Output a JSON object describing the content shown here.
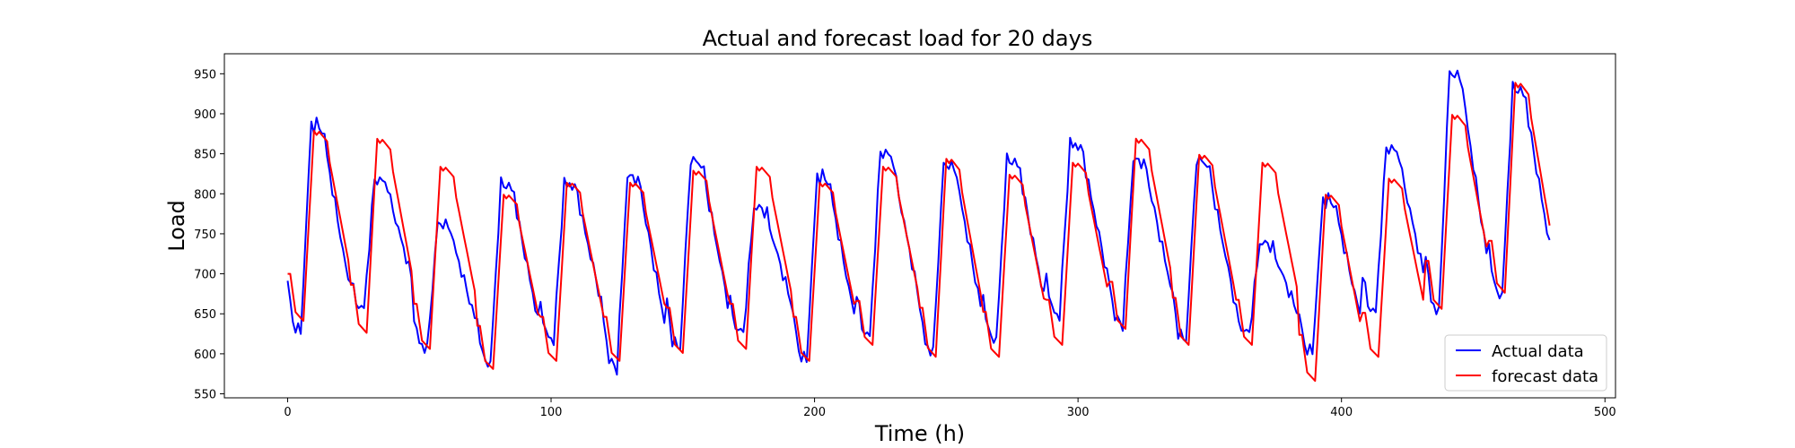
{
  "chart_data": {
    "type": "line",
    "title": "Actual and forecast load for 20 days",
    "xlabel": "Time (h)",
    "ylabel": "Load",
    "xlim": [
      -24,
      504
    ],
    "ylim": [
      545,
      975
    ],
    "xticks": [
      0,
      100,
      200,
      300,
      400,
      500
    ],
    "yticks": [
      550,
      600,
      650,
      700,
      750,
      800,
      850,
      900,
      950
    ],
    "grid": false,
    "legend_position": "bottom-right",
    "days": 20,
    "points_per_day": 24,
    "series": [
      {
        "name": "Actual data",
        "color": "#0000ff",
        "days": [
          {
            "min": 625,
            "max": 890
          },
          {
            "min": 655,
            "max": 820
          },
          {
            "min": 605,
            "max": 765
          },
          {
            "min": 585,
            "max": 815
          },
          {
            "min": 615,
            "max": 815
          },
          {
            "min": 580,
            "max": 825
          },
          {
            "min": 605,
            "max": 845
          },
          {
            "min": 625,
            "max": 785
          },
          {
            "min": 590,
            "max": 825
          },
          {
            "min": 620,
            "max": 855
          },
          {
            "min": 600,
            "max": 840
          },
          {
            "min": 615,
            "max": 845
          },
          {
            "min": 645,
            "max": 865
          },
          {
            "min": 635,
            "max": 845
          },
          {
            "min": 615,
            "max": 845
          },
          {
            "min": 625,
            "max": 740
          },
          {
            "min": 600,
            "max": 795
          },
          {
            "min": 650,
            "max": 860
          },
          {
            "min": 650,
            "max": 955
          },
          {
            "min": 670,
            "max": 935
          }
        ]
      },
      {
        "name": "forecast data",
        "color": "#ff0000",
        "days": [
          {
            "min": 640,
            "max": 880
          },
          {
            "min": 625,
            "max": 870
          },
          {
            "min": 605,
            "max": 835
          },
          {
            "min": 580,
            "max": 800
          },
          {
            "min": 590,
            "max": 815
          },
          {
            "min": 590,
            "max": 815
          },
          {
            "min": 600,
            "max": 830
          },
          {
            "min": 605,
            "max": 835
          },
          {
            "min": 590,
            "max": 815
          },
          {
            "min": 610,
            "max": 835
          },
          {
            "min": 595,
            "max": 845
          },
          {
            "min": 595,
            "max": 825
          },
          {
            "min": 610,
            "max": 840
          },
          {
            "min": 630,
            "max": 870
          },
          {
            "min": 610,
            "max": 850
          },
          {
            "min": 610,
            "max": 840
          },
          {
            "min": 565,
            "max": 800
          },
          {
            "min": 595,
            "max": 820
          },
          {
            "min": 655,
            "max": 900
          },
          {
            "min": 675,
            "max": 940
          }
        ]
      }
    ]
  }
}
